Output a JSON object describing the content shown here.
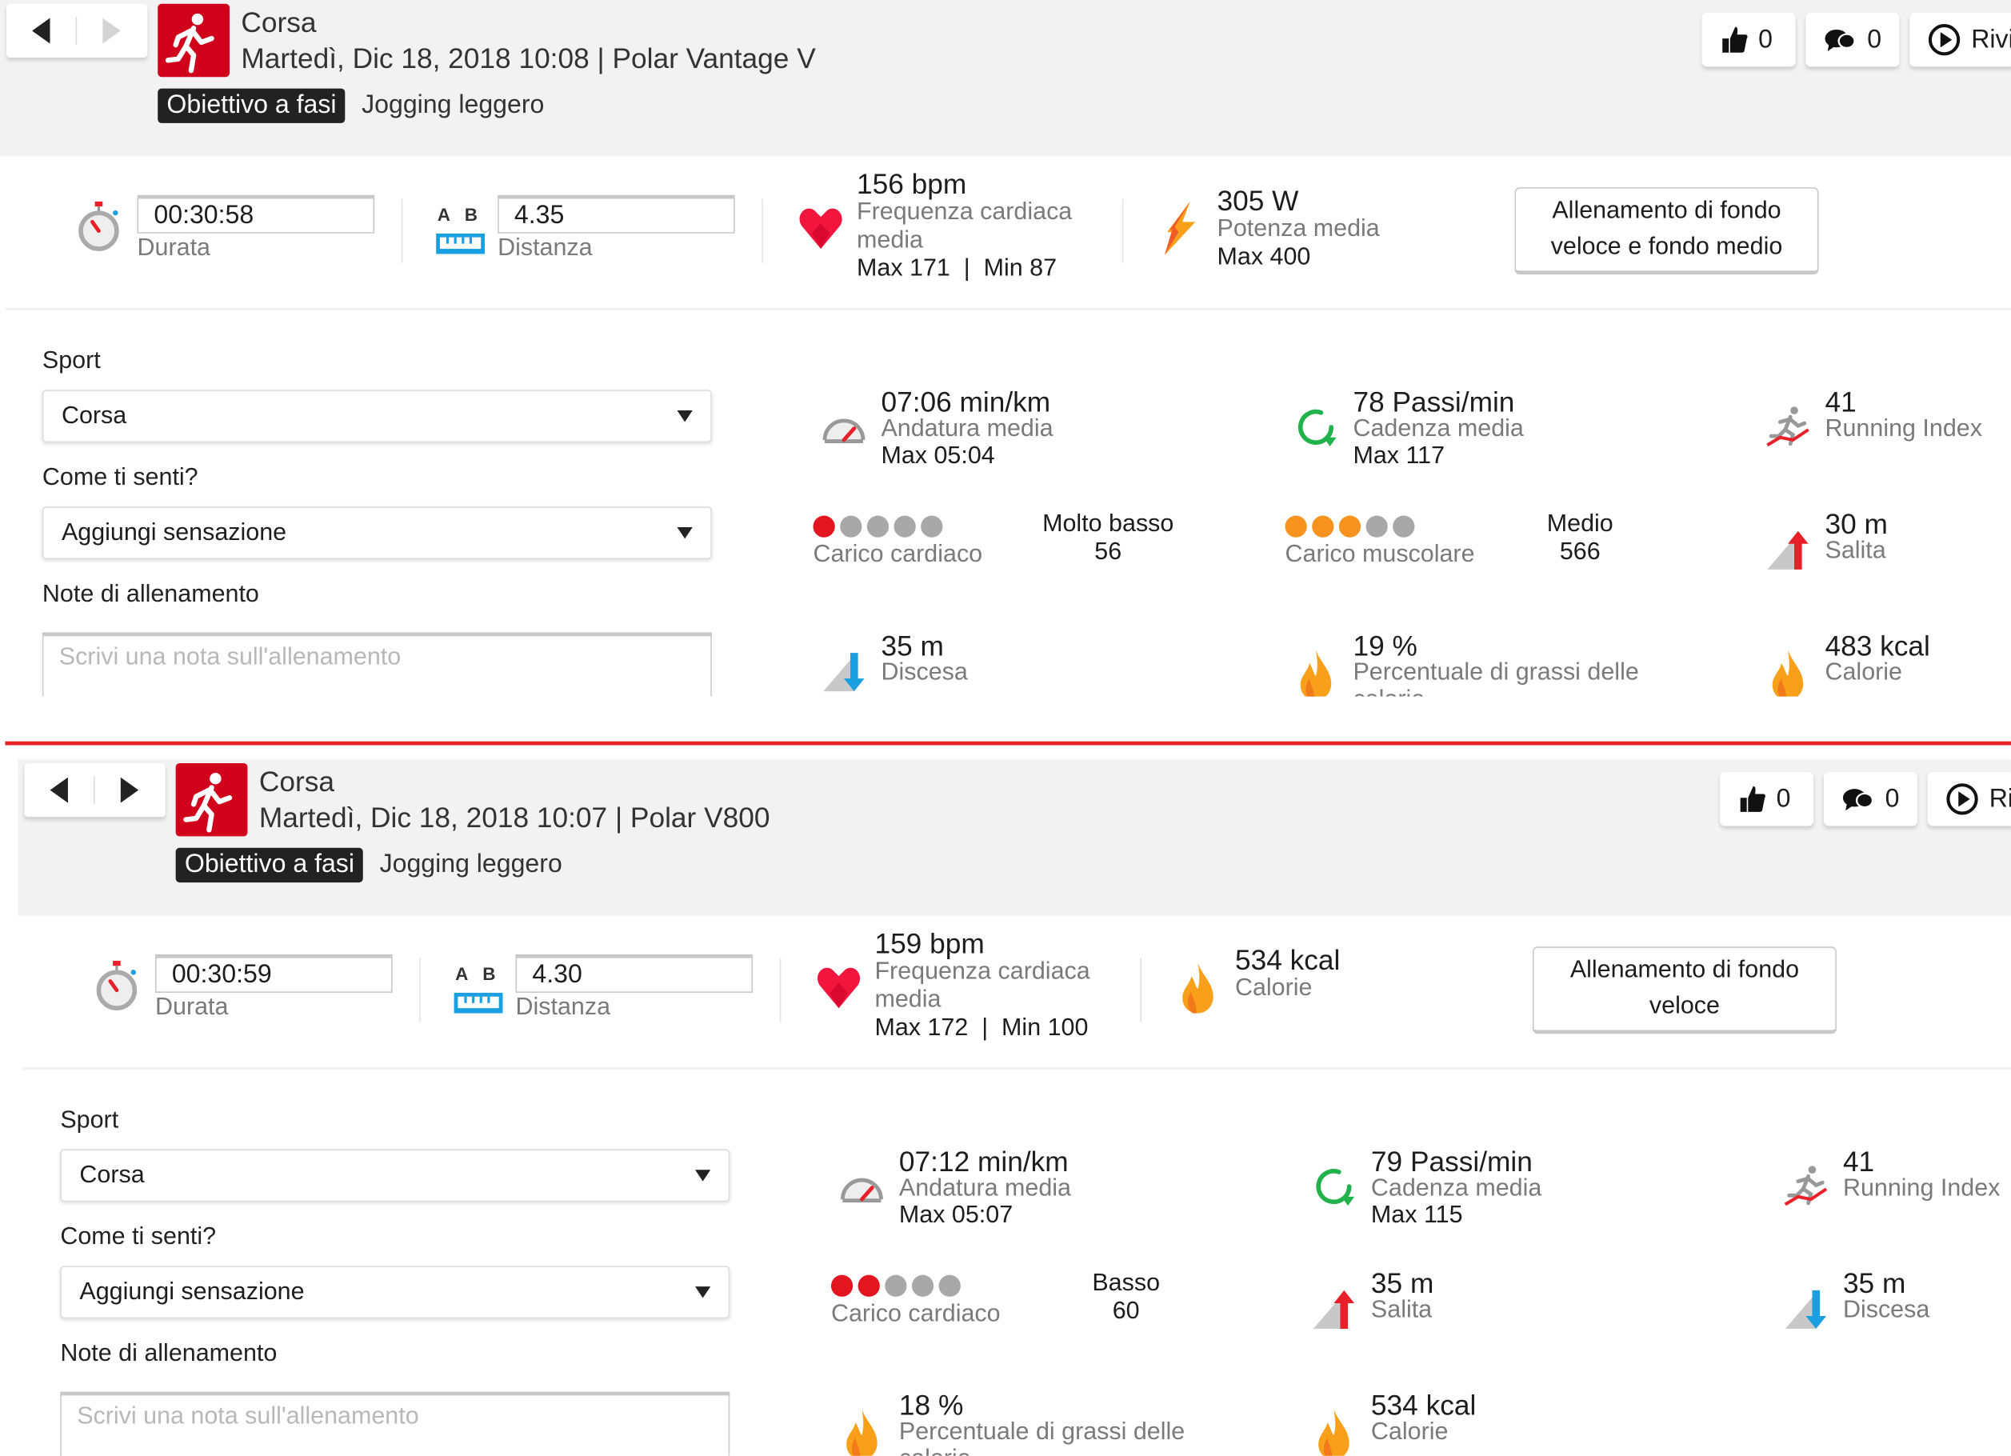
{
  "panels": [
    {
      "sport_title": "Corsa",
      "date_line": "Martedì, Dic 18, 2018 10:08 | Polar Vantage V",
      "target_tag": "Obiettivo a fasi",
      "target_name": "Jogging leggero",
      "next_enabled": false,
      "likes": "0",
      "comments": "0",
      "replay_label": "Rivi",
      "duration": "00:30:58",
      "duration_label": "Durata",
      "ab_label": "A   B",
      "distance": "4.35",
      "distance_label": "Distanza",
      "hr_value": "156 bpm",
      "hr_label": "Frequenza cardiaca media",
      "hr_sub": "Max 171  |  Min 87",
      "fourth": {
        "icon": "bolt",
        "value": "305 W",
        "label": "Potenza media",
        "sub": "Max 400"
      },
      "benefit": "Allenamento di fondo veloce e fondo medio",
      "sport_label": "Sport",
      "sport_value": "Corsa",
      "feeling_label": "Come ti senti?",
      "feeling_value": "Aggiungi sensazione",
      "notes_label": "Note di allenamento",
      "notes_placeholder": "Scrivi una nota sull'allenamento",
      "stats": [
        {
          "kind": "metric",
          "icon": "pace",
          "value": "07:06 min/km",
          "label": "Andatura media",
          "sub": "Max 05:04"
        },
        {
          "kind": "metric",
          "icon": "cadence",
          "value": "78 Passi/min",
          "label": "Cadenza media",
          "sub": "Max 117"
        },
        {
          "kind": "metric",
          "icon": "running-index",
          "value": "41",
          "label": "Running Index",
          "sub": ""
        },
        {
          "kind": "load",
          "filled": 1,
          "color": "#e3151f",
          "label": "Carico cardiaco",
          "level": "Molto basso",
          "value": "56"
        },
        {
          "kind": "load",
          "filled": 3,
          "color": "#f7931e",
          "label": "Carico muscolare",
          "level": "Medio",
          "value": "566"
        },
        {
          "kind": "metric",
          "icon": "ascent",
          "value": "30 m",
          "label": "Salita",
          "sub": ""
        },
        {
          "kind": "metric",
          "icon": "descent",
          "value": "35 m",
          "label": "Discesa",
          "sub": ""
        },
        {
          "kind": "metric",
          "icon": "flame",
          "value": "19 %",
          "label": "Percentuale di grassi delle calorie",
          "sub": ""
        },
        {
          "kind": "metric",
          "icon": "flame",
          "value": "483 kcal",
          "label": "Calorie",
          "sub": ""
        }
      ]
    },
    {
      "sport_title": "Corsa",
      "date_line": "Martedì, Dic 18, 2018 10:07 | Polar V800",
      "target_tag": "Obiettivo a fasi",
      "target_name": "Jogging leggero",
      "next_enabled": true,
      "likes": "0",
      "comments": "0",
      "replay_label": "Ri",
      "duration": "00:30:59",
      "duration_label": "Durata",
      "ab_label": "A   B",
      "distance": "4.30",
      "distance_label": "Distanza",
      "hr_value": "159 bpm",
      "hr_label": "Frequenza cardiaca media",
      "hr_sub": "Max 172  |  Min 100",
      "fourth": {
        "icon": "flame",
        "value": "534 kcal",
        "label": "Calorie",
        "sub": ""
      },
      "benefit": "Allenamento di fondo veloce",
      "sport_label": "Sport",
      "sport_value": "Corsa",
      "feeling_label": "Come ti senti?",
      "feeling_value": "Aggiungi sensazione",
      "notes_label": "Note di allenamento",
      "notes_placeholder": "Scrivi una nota sull'allenamento",
      "stats": [
        {
          "kind": "metric",
          "icon": "pace",
          "value": "07:12 min/km",
          "label": "Andatura media",
          "sub": "Max 05:07"
        },
        {
          "kind": "metric",
          "icon": "cadence",
          "value": "79 Passi/min",
          "label": "Cadenza media",
          "sub": "Max 115"
        },
        {
          "kind": "metric",
          "icon": "running-index",
          "value": "41",
          "label": "Running Index",
          "sub": ""
        },
        {
          "kind": "load",
          "filled": 2,
          "color": "#e3151f",
          "label": "Carico cardiaco",
          "level": "Basso",
          "value": "60"
        },
        {
          "kind": "metric",
          "icon": "ascent",
          "value": "35 m",
          "label": "Salita",
          "sub": ""
        },
        {
          "kind": "metric",
          "icon": "descent",
          "value": "35 m",
          "label": "Discesa",
          "sub": ""
        },
        {
          "kind": "metric",
          "icon": "flame",
          "value": "18 %",
          "label": "Percentuale di grassi delle calorie",
          "sub": ""
        },
        {
          "kind": "metric",
          "icon": "flame",
          "value": "534 kcal",
          "label": "Calorie",
          "sub": ""
        }
      ]
    }
  ],
  "colors": {
    "brand_red": "#d0021b",
    "separator": "#e8202a",
    "ruler_blue": "#1a9fe0",
    "cadence_green": "#22b24c"
  }
}
